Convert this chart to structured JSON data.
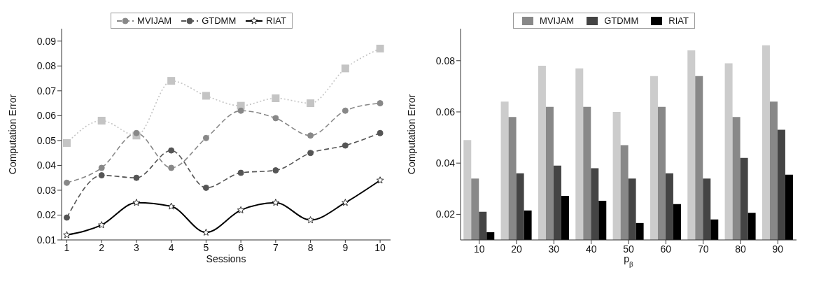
{
  "chart_data": [
    {
      "type": "line",
      "xlabel": "Sessions",
      "ylabel": "Computation Error",
      "x": [
        1,
        2,
        3,
        4,
        5,
        6,
        7,
        8,
        9,
        10
      ],
      "xlim": [
        0.85,
        10.3
      ],
      "xticks": [
        1,
        2,
        3,
        4,
        5,
        6,
        7,
        8,
        9,
        10
      ],
      "ylim": [
        0.01,
        0.095
      ],
      "yticks": [
        0.01,
        0.02,
        0.03,
        0.04,
        0.05,
        0.06,
        0.07,
        0.08,
        0.09
      ],
      "grid": false,
      "legend": "top",
      "series": [
        {
          "color": "#c4c4c4",
          "line_style": "dotted",
          "marker": "square",
          "values": [
            0.049,
            0.058,
            0.052,
            0.074,
            0.068,
            0.064,
            0.067,
            0.065,
            0.079,
            0.087
          ]
        },
        {
          "name": "MVIJAM",
          "color": "#888888",
          "line_style": "dashed",
          "marker": "circle",
          "values": [
            0.033,
            0.039,
            0.053,
            0.039,
            0.051,
            0.062,
            0.059,
            0.052,
            0.062,
            0.065
          ]
        },
        {
          "name": "GTDMM",
          "color": "#555555",
          "line_style": "dashed",
          "marker": "circle",
          "values": [
            0.019,
            0.036,
            0.035,
            0.046,
            0.031,
            0.037,
            0.038,
            0.045,
            0.048,
            0.053
          ]
        },
        {
          "name": "RIAT",
          "color": "#000000",
          "line_style": "solid",
          "marker": "star",
          "values": [
            0.012,
            0.016,
            0.025,
            0.0235,
            0.013,
            0.022,
            0.025,
            0.018,
            0.025,
            0.034
          ]
        }
      ]
    },
    {
      "type": "bar",
      "xlabel": "p$_{β}$",
      "ylabel": "Computation Error",
      "categories": [
        "10",
        "20",
        "30",
        "40",
        "50",
        "60",
        "70",
        "80",
        "90"
      ],
      "ylim": [
        0.01,
        0.0925
      ],
      "yticks": [
        0.02,
        0.04,
        0.06,
        0.08
      ],
      "grid": false,
      "legend": "top",
      "series": [
        {
          "color": "#cccccc",
          "values": [
            0.049,
            0.064,
            0.078,
            0.077,
            0.06,
            0.074,
            0.084,
            0.079,
            0.086
          ]
        },
        {
          "name": "MVIJAM",
          "color": "#888888",
          "values": [
            0.034,
            0.058,
            0.062,
            0.062,
            0.047,
            0.062,
            0.074,
            0.058,
            0.064
          ]
        },
        {
          "name": "GTDMM",
          "color": "#444444",
          "values": [
            0.021,
            0.036,
            0.039,
            0.038,
            0.034,
            0.036,
            0.034,
            0.042,
            0.053
          ]
        },
        {
          "name": "RIAT",
          "color": "#000000",
          "values": [
            0.013,
            0.0215,
            0.0272,
            0.0253,
            0.0166,
            0.024,
            0.018,
            0.0206,
            0.0355
          ]
        }
      ]
    }
  ]
}
